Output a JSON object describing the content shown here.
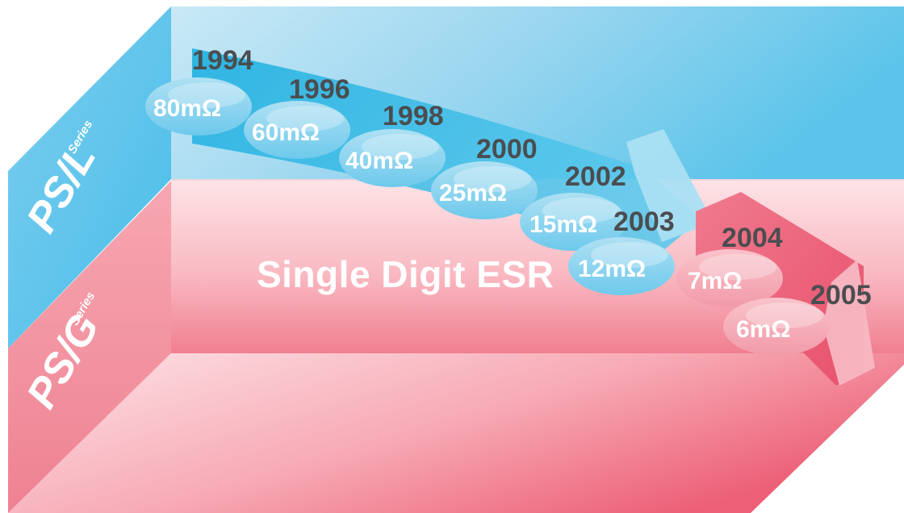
{
  "diagram": {
    "banner": "Single Digit ESR",
    "series": {
      "psl": {
        "main": "PS/L",
        "sub": "Series"
      },
      "psg": {
        "main": "PS/G",
        "sub": "Series"
      }
    },
    "milestones": [
      {
        "year": "1994",
        "esr": "80mΩ",
        "series": "PS/L"
      },
      {
        "year": "1996",
        "esr": "60mΩ",
        "series": "PS/L"
      },
      {
        "year": "1998",
        "esr": "40mΩ",
        "series": "PS/L"
      },
      {
        "year": "2000",
        "esr": "25mΩ",
        "series": "PS/L"
      },
      {
        "year": "2002",
        "esr": "15mΩ",
        "series": "PS/L"
      },
      {
        "year": "2003",
        "esr": "12mΩ",
        "series": "PS/L"
      },
      {
        "year": "2004",
        "esr": "7mΩ",
        "series": "PS/G"
      },
      {
        "year": "2005",
        "esr": "6mΩ",
        "series": "PS/G"
      }
    ],
    "colors": {
      "blue_light": "#c6e7f5",
      "blue_mid": "#8fd0ec",
      "blue_strong": "#38b8e4",
      "pink_light": "#fbe0e4",
      "pink_mid": "#f39aa6",
      "pink_strong": "#ea5a72",
      "year_text": "#4a4d50"
    }
  }
}
